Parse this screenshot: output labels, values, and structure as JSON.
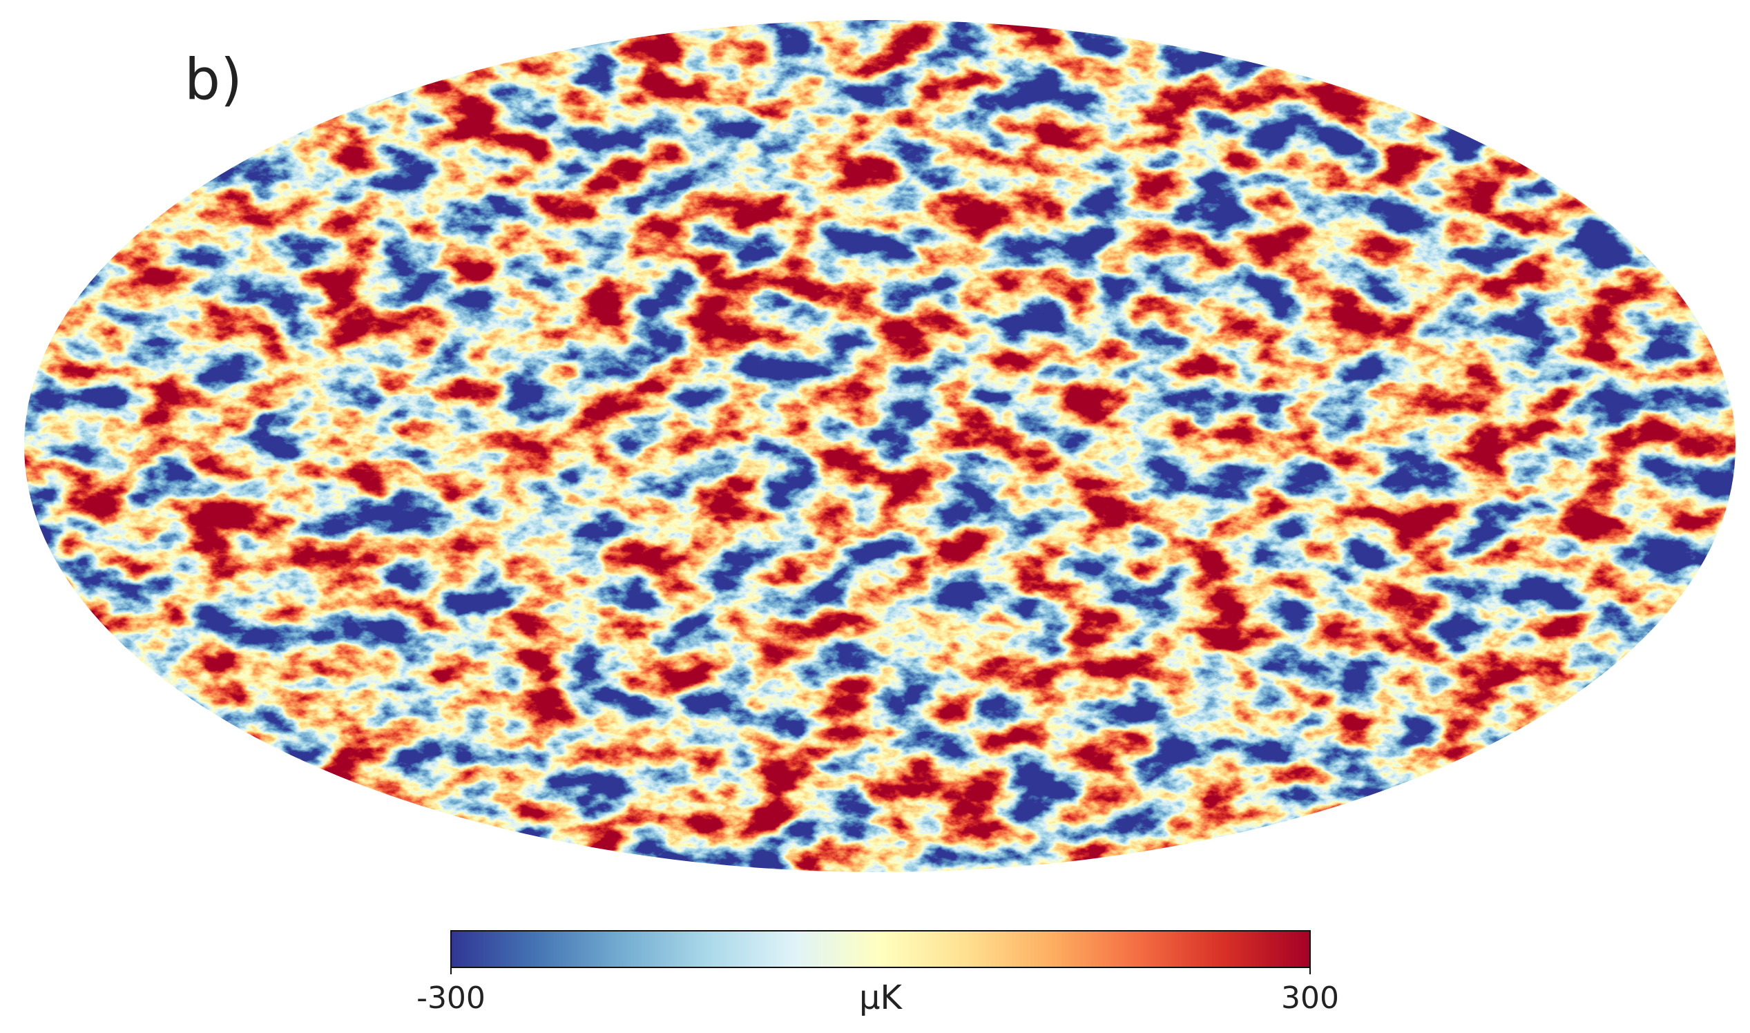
{
  "panel_label": "b)",
  "colorbar": {
    "label": "μK",
    "range": [
      -300,
      300
    ],
    "ticks": [
      -300,
      300
    ],
    "colors": [
      "#313695",
      "#4575b4",
      "#74add1",
      "#abd9e9",
      "#e0f3f8",
      "#ffffbf",
      "#fee090",
      "#fdae61",
      "#f46d43",
      "#d73027",
      "#a50026"
    ]
  }
}
